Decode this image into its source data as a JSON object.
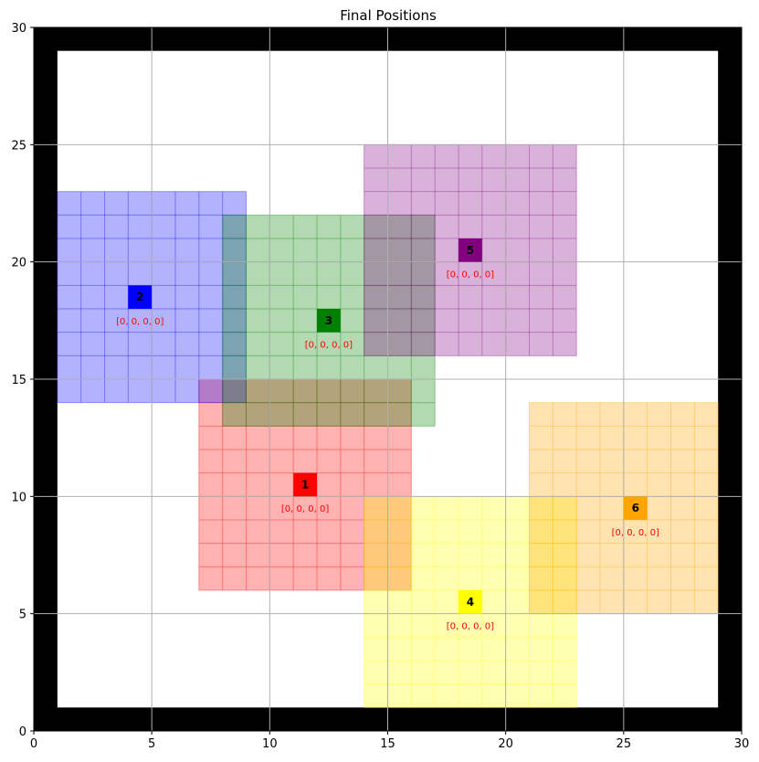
{
  "chart_data": {
    "type": "scatter",
    "title": "Final Positions",
    "xlabel": "",
    "ylabel": "",
    "xlim": [
      0,
      30
    ],
    "ylim": [
      0,
      30
    ],
    "xticks": [
      0,
      5,
      10,
      15,
      20,
      25,
      30
    ],
    "yticks": [
      0,
      5,
      10,
      15,
      20,
      25,
      30
    ],
    "grid": true,
    "boundary": {
      "color": "#000000",
      "wall_width": 1,
      "inner": [
        1,
        1,
        29,
        29
      ]
    },
    "agents": [
      {
        "id": "1",
        "x": 11.5,
        "y": 10.5,
        "color": "#ff0000",
        "region": [
          7,
          6,
          16,
          15
        ],
        "state": "[0, 0, 0, 0]"
      },
      {
        "id": "2",
        "x": 4.5,
        "y": 18.5,
        "color": "#0000ff",
        "region": [
          1,
          14,
          9,
          23
        ],
        "state": "[0, 0, 0, 0]"
      },
      {
        "id": "3",
        "x": 12.5,
        "y": 17.5,
        "color": "#008000",
        "region": [
          8,
          13,
          17,
          22
        ],
        "state": "[0, 0, 0, 0]"
      },
      {
        "id": "4",
        "x": 18.5,
        "y": 5.5,
        "color": "#ffff00",
        "region": [
          14,
          1,
          23,
          10
        ],
        "state": "[0, 0, 0, 0]"
      },
      {
        "id": "5",
        "x": 18.5,
        "y": 20.5,
        "color": "#800080",
        "region": [
          14,
          16,
          23,
          25
        ],
        "state": "[0, 0, 0, 0]"
      },
      {
        "id": "6",
        "x": 25.5,
        "y": 9.5,
        "color": "#ffa500",
        "region": [
          21,
          5,
          29,
          14
        ],
        "state": "[0, 0, 0, 0]"
      }
    ]
  }
}
